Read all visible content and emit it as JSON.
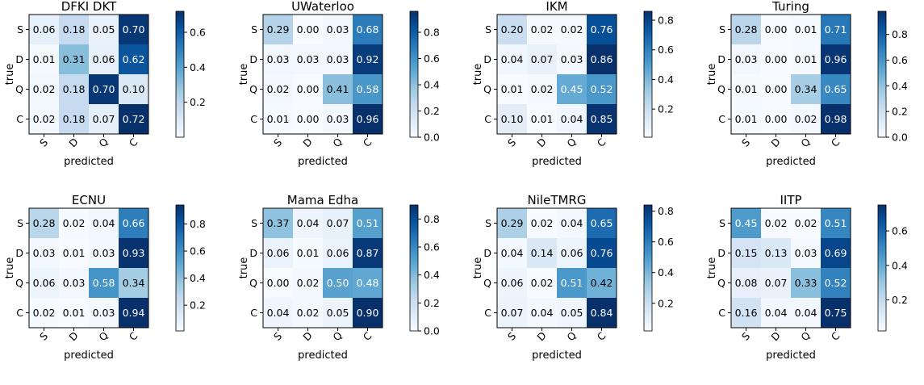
{
  "figure": {
    "xlabel": "predicted",
    "ylabel": "true"
  },
  "chart_data": [
    {
      "type": "heatmap",
      "title": "DFKI DKT",
      "rows": [
        "S",
        "D",
        "Q",
        "C"
      ],
      "cols": [
        "S",
        "D",
        "Q",
        "C"
      ],
      "values": [
        [
          0.06,
          0.18,
          0.05,
          0.7
        ],
        [
          0.01,
          0.31,
          0.06,
          0.62
        ],
        [
          0.02,
          0.18,
          0.7,
          0.1
        ],
        [
          0.02,
          0.18,
          0.07,
          0.72
        ]
      ],
      "colorbar_range": [
        0.0,
        0.72
      ],
      "colorbar_ticks": [
        "0.2",
        "0.4",
        "0.6"
      ],
      "colorbar_tick_values": [
        0.2,
        0.4,
        0.6
      ]
    },
    {
      "type": "heatmap",
      "title": "UWaterloo",
      "rows": [
        "S",
        "D",
        "Q",
        "C"
      ],
      "cols": [
        "S",
        "D",
        "Q",
        "C"
      ],
      "values": [
        [
          0.29,
          0.0,
          0.03,
          0.68
        ],
        [
          0.03,
          0.03,
          0.03,
          0.92
        ],
        [
          0.02,
          0.0,
          0.41,
          0.58
        ],
        [
          0.01,
          0.0,
          0.03,
          0.96
        ]
      ],
      "colorbar_range": [
        0.0,
        0.96
      ],
      "colorbar_ticks": [
        "0.0",
        "0.2",
        "0.4",
        "0.6",
        "0.8"
      ],
      "colorbar_tick_values": [
        0.0,
        0.2,
        0.4,
        0.6,
        0.8
      ]
    },
    {
      "type": "heatmap",
      "title": "IKM",
      "rows": [
        "S",
        "D",
        "Q",
        "C"
      ],
      "cols": [
        "S",
        "D",
        "Q",
        "C"
      ],
      "values": [
        [
          0.2,
          0.02,
          0.02,
          0.76
        ],
        [
          0.04,
          0.07,
          0.03,
          0.86
        ],
        [
          0.01,
          0.02,
          0.45,
          0.52
        ],
        [
          0.1,
          0.01,
          0.04,
          0.85
        ]
      ],
      "colorbar_range": [
        0.01,
        0.86
      ],
      "colorbar_ticks": [
        "0.2",
        "0.4",
        "0.6",
        "0.8"
      ],
      "colorbar_tick_values": [
        0.2,
        0.4,
        0.6,
        0.8
      ]
    },
    {
      "type": "heatmap",
      "title": "Turing",
      "rows": [
        "S",
        "D",
        "Q",
        "C"
      ],
      "cols": [
        "S",
        "D",
        "Q",
        "C"
      ],
      "values": [
        [
          0.28,
          0.0,
          0.01,
          0.71
        ],
        [
          0.03,
          0.0,
          0.01,
          0.96
        ],
        [
          0.01,
          0.0,
          0.34,
          0.65
        ],
        [
          0.01,
          0.0,
          0.02,
          0.98
        ]
      ],
      "colorbar_range": [
        0.0,
        0.98
      ],
      "colorbar_ticks": [
        "0.0",
        "0.2",
        "0.4",
        "0.6",
        "0.8"
      ],
      "colorbar_tick_values": [
        0.0,
        0.2,
        0.4,
        0.6,
        0.8
      ]
    },
    {
      "type": "heatmap",
      "title": "ECNU",
      "rows": [
        "S",
        "D",
        "Q",
        "C"
      ],
      "cols": [
        "S",
        "D",
        "Q",
        "C"
      ],
      "values": [
        [
          0.28,
          0.02,
          0.04,
          0.66
        ],
        [
          0.03,
          0.01,
          0.03,
          0.93
        ],
        [
          0.06,
          0.03,
          0.58,
          0.34
        ],
        [
          0.02,
          0.01,
          0.03,
          0.94
        ]
      ],
      "colorbar_range": [
        0.01,
        0.94
      ],
      "colorbar_ticks": [
        "0.2",
        "0.4",
        "0.6",
        "0.8"
      ],
      "colorbar_tick_values": [
        0.2,
        0.4,
        0.6,
        0.8
      ]
    },
    {
      "type": "heatmap",
      "title": "Mama Edha",
      "rows": [
        "S",
        "D",
        "Q",
        "C"
      ],
      "cols": [
        "S",
        "D",
        "Q",
        "C"
      ],
      "values": [
        [
          0.37,
          0.04,
          0.07,
          0.51
        ],
        [
          0.06,
          0.01,
          0.06,
          0.87
        ],
        [
          0.0,
          0.02,
          0.5,
          0.48
        ],
        [
          0.04,
          0.02,
          0.05,
          0.9
        ]
      ],
      "colorbar_range": [
        0.0,
        0.9
      ],
      "colorbar_ticks": [
        "0.0",
        "0.2",
        "0.4",
        "0.6",
        "0.8"
      ],
      "colorbar_tick_values": [
        0.0,
        0.2,
        0.4,
        0.6,
        0.8
      ]
    },
    {
      "type": "heatmap",
      "title": "NileTMRG",
      "rows": [
        "S",
        "D",
        "Q",
        "C"
      ],
      "cols": [
        "S",
        "D",
        "Q",
        "C"
      ],
      "values": [
        [
          0.29,
          0.02,
          0.04,
          0.65
        ],
        [
          0.04,
          0.14,
          0.06,
          0.76
        ],
        [
          0.06,
          0.02,
          0.51,
          0.42
        ],
        [
          0.07,
          0.04,
          0.05,
          0.84
        ]
      ],
      "colorbar_range": [
        0.02,
        0.84
      ],
      "colorbar_ticks": [
        "0.2",
        "0.4",
        "0.6",
        "0.8"
      ],
      "colorbar_tick_values": [
        0.2,
        0.4,
        0.6,
        0.8
      ]
    },
    {
      "type": "heatmap",
      "title": "IITP",
      "rows": [
        "S",
        "D",
        "Q",
        "C"
      ],
      "cols": [
        "S",
        "D",
        "Q",
        "C"
      ],
      "values": [
        [
          0.45,
          0.02,
          0.02,
          0.51
        ],
        [
          0.15,
          0.13,
          0.03,
          0.69
        ],
        [
          0.08,
          0.07,
          0.33,
          0.52
        ],
        [
          0.16,
          0.04,
          0.04,
          0.75
        ]
      ],
      "colorbar_range": [
        0.02,
        0.75
      ],
      "colorbar_ticks": [
        "0.2",
        "0.4",
        "0.6"
      ],
      "colorbar_tick_values": [
        0.2,
        0.4,
        0.6
      ]
    }
  ]
}
